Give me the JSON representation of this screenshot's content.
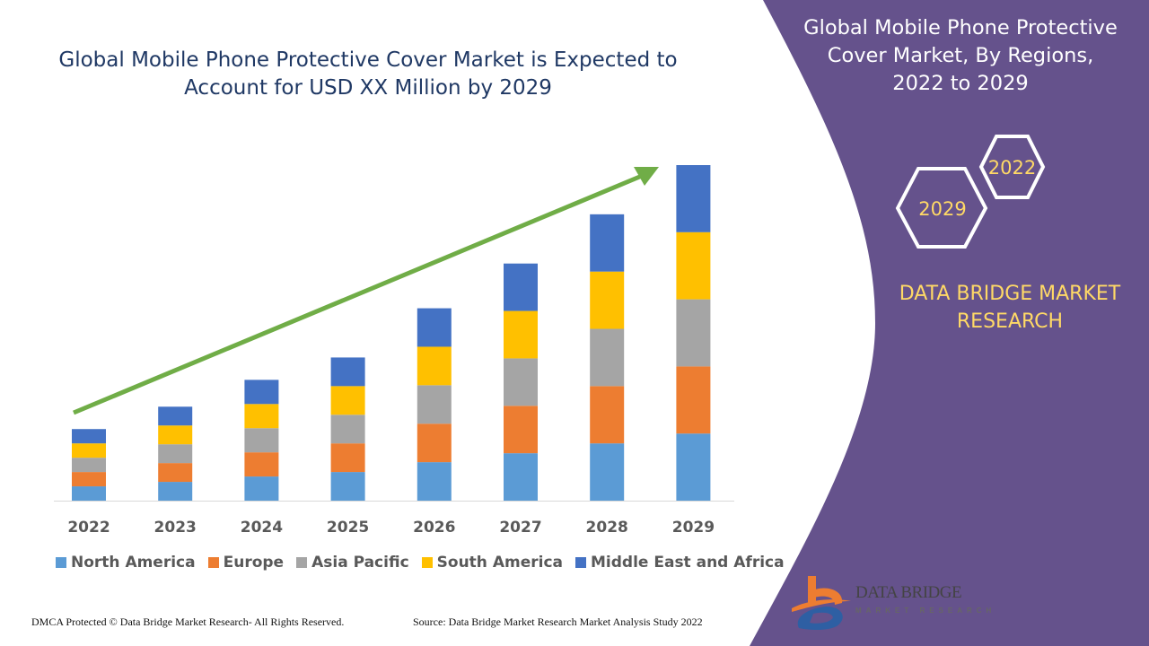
{
  "title": "Global Mobile Phone Protective Cover Market is Expected to Account for USD XX Million by 2029",
  "side_panel": {
    "title": "Global Mobile Phone Protective Cover Market, By Regions, 2022 to 2029",
    "hex_labels": [
      "2022",
      "2029"
    ],
    "brand": "DATA BRIDGE MARKET RESEARCH",
    "logo_text": "DATA BRIDGE",
    "logo_sub": "MARKET RESEARCH",
    "color": "#65528c"
  },
  "footer": {
    "left": "DMCA Protected © Data Bridge Market Research- All Rights Reserved.",
    "right": "Source: Data Bridge Market Research Market Analysis Study 2022"
  },
  "chart_data": {
    "type": "bar",
    "stacked": true,
    "title": "Global Mobile Phone Protective Cover Market is Expected to Account for USD XX Million by 2029",
    "categories": [
      "2022",
      "2023",
      "2024",
      "2025",
      "2026",
      "2027",
      "2028",
      "2029"
    ],
    "series": [
      {
        "name": "North America",
        "color": "#5b9bd5",
        "values": [
          16,
          21,
          27,
          32,
          43,
          53,
          64,
          75
        ]
      },
      {
        "name": "Europe",
        "color": "#ed7d31",
        "values": [
          16,
          21,
          27,
          32,
          43,
          53,
          64,
          75
        ]
      },
      {
        "name": "Asia Pacific",
        "color": "#a5a5a5",
        "values": [
          16,
          21,
          27,
          32,
          43,
          53,
          64,
          75
        ]
      },
      {
        "name": "South America",
        "color": "#ffc000",
        "values": [
          16,
          21,
          27,
          32,
          43,
          53,
          64,
          75
        ]
      },
      {
        "name": "Middle East and Africa",
        "color": "#4472c4",
        "values": [
          16,
          21,
          27,
          32,
          43,
          53,
          64,
          75
        ]
      }
    ],
    "ylim": [
      0,
      375
    ],
    "y_axis_shown": false,
    "grid": false,
    "legend_position": "bottom",
    "trend_arrow_color": "#70ad47"
  }
}
